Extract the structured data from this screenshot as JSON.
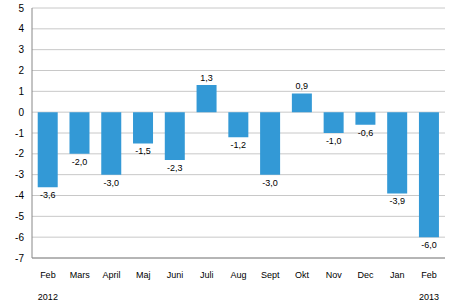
{
  "chart_data": {
    "type": "bar",
    "categories": [
      "Feb",
      "Mars",
      "April",
      "Maj",
      "Juni",
      "Juli",
      "Aug",
      "Sept",
      "Okt",
      "Nov",
      "Dec",
      "Jan",
      "Feb"
    ],
    "values": [
      -3.6,
      -2.0,
      -3.0,
      -1.5,
      -2.3,
      1.3,
      -1.2,
      -3.0,
      0.9,
      -1.0,
      -0.6,
      -3.9,
      -6.0
    ],
    "value_labels": [
      "-3,6",
      "-2,0",
      "-3,0",
      "-1,5",
      "-2,3",
      "1,3",
      "-1,2",
      "-3,0",
      "0,9",
      "-1,0",
      "-0,6",
      "-3,9",
      "-6,0"
    ],
    "color": "#3399d6",
    "ylim": [
      -7,
      5
    ],
    "yticks": [
      -7,
      -6,
      -5,
      -4,
      -3,
      -2,
      -1,
      0,
      1,
      2,
      3,
      4,
      5
    ],
    "grid": true,
    "data_labels": true,
    "annotations": [
      {
        "text": "2012",
        "x": 0
      },
      {
        "text": "2013",
        "x": 12
      }
    ]
  }
}
